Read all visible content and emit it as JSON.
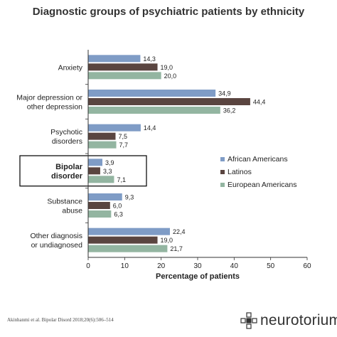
{
  "title": "Diagnostic groups of psychiatric patients by ethnicity",
  "source": "Akinhanmi et al. Bipolar Disord 2018;20(6):506–514",
  "brand": {
    "name": "neurotorium",
    "logo_icon": "neurotorium-logo-icon"
  },
  "colors": {
    "African Americans": "#7f9cc6",
    "Latinos": "#5a4540",
    "European Americans": "#93b5a1"
  },
  "chart_data": {
    "type": "bar",
    "orientation": "horizontal",
    "title": "Diagnostic groups of psychiatric patients by ethnicity",
    "xlabel": "Percentage of patients",
    "ylabel": "",
    "xlim": [
      0,
      60
    ],
    "xticks": [
      0,
      10,
      20,
      30,
      40,
      50,
      60
    ],
    "grid": false,
    "legend_position": "right",
    "categories": [
      [
        "Anxiety"
      ],
      [
        "Major depression or",
        "other depression"
      ],
      [
        "Psychotic",
        "disorders"
      ],
      [
        "Bipolar",
        "disorder"
      ],
      [
        "Substance",
        "abuse"
      ],
      [
        "Other diagnosis",
        "or undiagnosed"
      ]
    ],
    "highlighted_category": 3,
    "series": [
      {
        "name": "African Americans",
        "values": [
          14.3,
          34.9,
          14.4,
          3.9,
          9.3,
          22.4
        ],
        "labels": [
          "14,3",
          "34,9",
          "14,4",
          "3,9",
          "9,3",
          "22,4"
        ]
      },
      {
        "name": "Latinos",
        "values": [
          19.0,
          44.4,
          7.5,
          3.3,
          6.0,
          19.0
        ],
        "labels": [
          "19,0",
          "44,4",
          "7,5",
          "3,3",
          "6,0",
          "19,0"
        ]
      },
      {
        "name": "European Americans",
        "values": [
          20.0,
          36.2,
          7.7,
          7.1,
          6.3,
          21.7
        ],
        "labels": [
          "20,0",
          "36,2",
          "7,7",
          "7,1",
          "6,3",
          "21,7"
        ]
      }
    ]
  }
}
